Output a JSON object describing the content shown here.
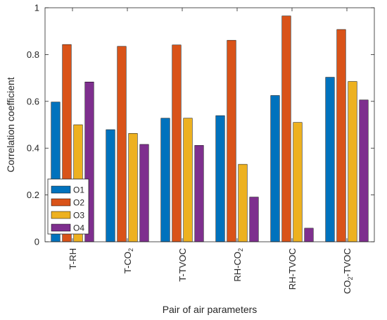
{
  "chart_data": {
    "type": "bar",
    "title": "",
    "xlabel": "Pair of air parameters",
    "ylabel": "Correlation coefficient",
    "ylim": [
      0,
      1
    ],
    "yticks": [
      "0",
      "0.2",
      "0.4",
      "0.6",
      "0.8",
      "1"
    ],
    "categories": [
      "T-RH",
      "T-CO2",
      "T-TVOC",
      "RH-CO2",
      "RH-TVOC",
      "CO2-TVOC"
    ],
    "category_labels": [
      {
        "parts": [
          {
            "t": "T-RH"
          }
        ]
      },
      {
        "parts": [
          {
            "t": "T-CO"
          },
          {
            "t": "2",
            "sub": true
          }
        ]
      },
      {
        "parts": [
          {
            "t": "T-TVOC"
          }
        ]
      },
      {
        "parts": [
          {
            "t": "RH-CO"
          },
          {
            "t": "2",
            "sub": true
          }
        ]
      },
      {
        "parts": [
          {
            "t": "RH-TVOC"
          }
        ]
      },
      {
        "parts": [
          {
            "t": "CO"
          },
          {
            "t": "2",
            "sub": true
          },
          {
            "t": "-TVOC"
          }
        ]
      }
    ],
    "series": [
      {
        "name": "O1",
        "color": "#0072BD",
        "values": [
          0.597,
          0.479,
          0.528,
          0.539,
          0.625,
          0.703
        ]
      },
      {
        "name": "O2",
        "color": "#D95319",
        "values": [
          0.843,
          0.835,
          0.841,
          0.861,
          0.965,
          0.907
        ]
      },
      {
        "name": "O3",
        "color": "#EDB120",
        "values": [
          0.5,
          0.463,
          0.528,
          0.331,
          0.51,
          0.685
        ]
      },
      {
        "name": "O4",
        "color": "#7E2F8E",
        "values": [
          0.683,
          0.416,
          0.412,
          0.191,
          0.058,
          0.606
        ]
      }
    ],
    "grid": false,
    "legend_position": "bottom-left"
  }
}
